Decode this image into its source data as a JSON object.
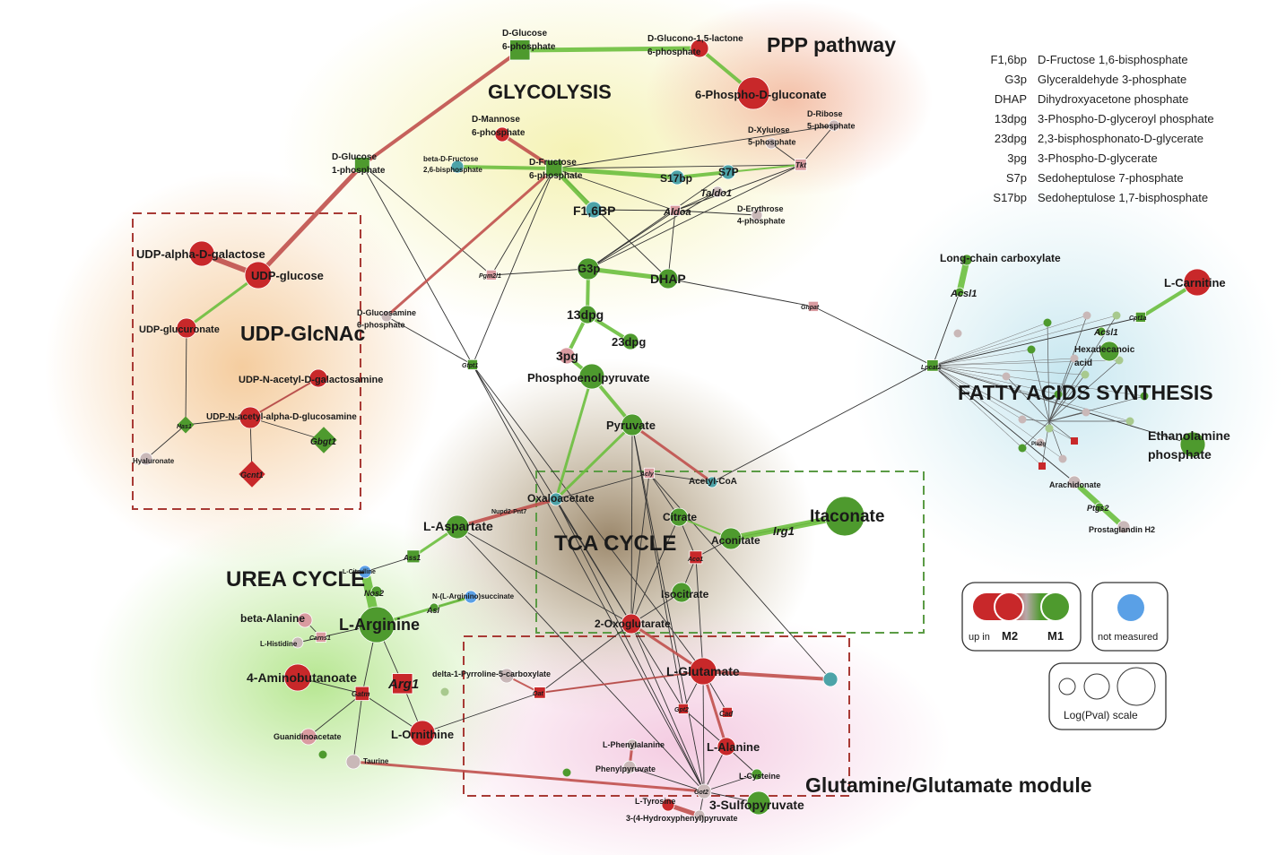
{
  "titles": {
    "ppp": "PPP pathway",
    "glycolysis": "GLYCOLYSIS",
    "udp": "UDP-GlcNAc",
    "fatty": "FATTY ACIDS SYNTHESIS",
    "tca": "TCA CYCLE",
    "urea": "UREA CYCLE",
    "glut": "Glutamine/Glutamate module"
  },
  "abbreviations": [
    {
      "abbr": "F1,6bp",
      "name": "D-Fructose 1,6-bisphosphate"
    },
    {
      "abbr": "G3p",
      "name": "Glyceraldehyde 3-phosphate"
    },
    {
      "abbr": "DHAP",
      "name": "Dihydroxyacetone phosphate"
    },
    {
      "abbr": "13dpg",
      "name": "3-Phospho-D-glyceroyl phosphate"
    },
    {
      "abbr": "23dpg",
      "name": "2,3-bisphosphonato-D-glycerate"
    },
    {
      "abbr": "3pg",
      "name": "3-Phospho-D-glycerate"
    },
    {
      "abbr": "S7p",
      "name": "Sedoheptulose 7-phosphate"
    },
    {
      "abbr": "S17bp",
      "name": "Sedoheptulose 1,7-bisphosphate"
    }
  ],
  "legend": {
    "up_in": "up in",
    "m2": "M2",
    "m1": "M1",
    "not_measured": "not measured",
    "scale": "Log(Pval) scale"
  },
  "colors": {
    "m2": "#c8282a",
    "m1": "#4e9a2e",
    "not_measured": "#5aa0e6",
    "grey": "#c9b8b8",
    "pink": "#d99ba0",
    "teal": "#4da3a8",
    "edge_green": "#6cbf3e",
    "edge_red": "#c0504d"
  },
  "nodes": [
    {
      "id": "dglc6p",
      "label": "D-Glucose\n6-phosphate",
      "color": "m1",
      "shape": "square",
      "size": 16
    },
    {
      "id": "glucono",
      "label": "D-Glucono-1,5-lactone\n6-phosphate",
      "color": "m2",
      "shape": "circle",
      "size": 10
    },
    {
      "id": "phosphogluc",
      "label": "6-Phospho-D-gluconate",
      "color": "m2",
      "shape": "circle",
      "size": 18
    },
    {
      "id": "dglc1p",
      "label": "D-Glucose\n1-phosphate",
      "color": "m1",
      "shape": "square",
      "size": 12
    },
    {
      "id": "dman6p",
      "label": "D-Mannose\n6-phosphate",
      "color": "m2",
      "shape": "circle",
      "size": 8
    },
    {
      "id": "betafru",
      "label": "beta-D-Fructose\n2,6-bisphosphate",
      "color": "teal",
      "shape": "circle",
      "size": 7
    },
    {
      "id": "dfru6p",
      "label": "D-Fructose\n6-phosphate",
      "color": "m1",
      "shape": "square",
      "size": 13
    },
    {
      "id": "dxyl",
      "label": "D-Xylulose\n5-phosphate",
      "color": "grey",
      "shape": "circle",
      "size": 6
    },
    {
      "id": "drib",
      "label": "D-Ribose\n5-phosphate",
      "color": "grey",
      "shape": "circle",
      "size": 6
    },
    {
      "id": "tkt",
      "label": "Tkt",
      "color": "pink",
      "shape": "square",
      "size": 9
    },
    {
      "id": "s17bp",
      "label": "S17bp",
      "color": "teal",
      "shape": "circle",
      "size": 8
    },
    {
      "id": "s7p",
      "label": "S7P",
      "color": "teal",
      "shape": "circle",
      "size": 8
    },
    {
      "id": "taldo",
      "label": "Taldo1",
      "color": "grey",
      "shape": "circle",
      "size": 6
    },
    {
      "id": "f16bp",
      "label": "F1,6BP",
      "color": "teal",
      "shape": "circle",
      "size": 9
    },
    {
      "id": "aldoa",
      "label": "Aldoa",
      "color": "pink",
      "shape": "square",
      "size": 8
    },
    {
      "id": "derythrose",
      "label": "D-Erythrose\n4-phosphate",
      "color": "grey",
      "shape": "circle",
      "size": 6
    },
    {
      "id": "g3p",
      "label": "G3p",
      "color": "m1",
      "shape": "circle",
      "size": 12
    },
    {
      "id": "dhap",
      "label": "DHAP",
      "color": "m1",
      "shape": "circle",
      "size": 11
    },
    {
      "id": "pgm2l1",
      "label": "Pgm2l1",
      "color": "pink",
      "shape": "square",
      "size": 8
    },
    {
      "id": "d13dpg",
      "label": "13dpg",
      "color": "m1",
      "shape": "circle",
      "size": 10
    },
    {
      "id": "d23dpg",
      "label": "23dpg",
      "color": "m1",
      "shape": "circle",
      "size": 9
    },
    {
      "id": "pg3",
      "label": "3pg",
      "color": "pink",
      "shape": "circle",
      "size": 9
    },
    {
      "id": "pep",
      "label": "Phosphoenolpyruvate",
      "color": "m1",
      "shape": "circle",
      "size": 14
    },
    {
      "id": "pyruvate",
      "label": "Pyruvate",
      "color": "m1",
      "shape": "circle",
      "size": 12
    },
    {
      "id": "gnpat",
      "label": "Gnpat",
      "color": "pink",
      "shape": "square",
      "size": 8
    },
    {
      "id": "glucosamine",
      "label": "D-Glucosamine\n6-phosphate",
      "color": "grey",
      "shape": "circle",
      "size": 6
    },
    {
      "id": "gfpt1",
      "label": "Gfpt1",
      "color": "m1",
      "shape": "square",
      "size": 8
    },
    {
      "id": "udpgal",
      "label": "UDP-alpha-D-galactose",
      "color": "m2",
      "shape": "circle",
      "size": 14
    },
    {
      "id": "udpglc",
      "label": "UDP-glucose",
      "color": "m2",
      "shape": "circle",
      "size": 15
    },
    {
      "id": "udpglcu",
      "label": "UDP-glucuronate",
      "color": "m2",
      "shape": "circle",
      "size": 11
    },
    {
      "id": "udpgalnac",
      "label": "UDP-N-acetyl-D-galactosamine",
      "color": "m2",
      "shape": "circle",
      "size": 10
    },
    {
      "id": "udpglcnac",
      "label": "UDP-N-acetyl-alpha-D-glucosamine",
      "color": "m2",
      "shape": "circle",
      "size": 12
    },
    {
      "id": "has1",
      "label": "Has1",
      "color": "m1",
      "shape": "diamond",
      "size": 9
    },
    {
      "id": "hyal",
      "label": "Hyaluronate",
      "color": "grey",
      "shape": "circle",
      "size": 7
    },
    {
      "id": "gcnt1",
      "label": "Gcnt1",
      "color": "m2",
      "shape": "diamond",
      "size": 14
    },
    {
      "id": "gbgt1",
      "label": "Gbgt1",
      "color": "m1",
      "shape": "diamond",
      "size": 14
    },
    {
      "id": "acly",
      "label": "Acly",
      "color": "pink",
      "shape": "square",
      "size": 8
    },
    {
      "id": "acetylcoa",
      "label": "Acetyl-CoA",
      "color": "teal",
      "shape": "circle",
      "size": 6
    },
    {
      "id": "oaa",
      "label": "Oxaloacetate",
      "color": "teal",
      "shape": "circle",
      "size": 7
    },
    {
      "id": "citrate",
      "label": "Citrate",
      "color": "m1",
      "shape": "circle",
      "size": 10
    },
    {
      "id": "aconitate",
      "label": "Aconitate",
      "color": "m1",
      "shape": "circle",
      "size": 12
    },
    {
      "id": "itaconate",
      "label": "Itaconate",
      "color": "m1",
      "shape": "circle",
      "size": 22
    },
    {
      "id": "aco1",
      "label": "Aco1",
      "color": "m2",
      "shape": "square",
      "size": 10
    },
    {
      "id": "isocitrate",
      "label": "Isocitrate",
      "color": "m1",
      "shape": "circle",
      "size": 11
    },
    {
      "id": "oxoglu",
      "label": "2-Oxoglutarate",
      "color": "m2",
      "shape": "circle",
      "size": 11
    },
    {
      "id": "laspartate",
      "label": "L-Aspartate",
      "color": "m1",
      "shape": "circle",
      "size": 13
    },
    {
      "id": "ass1",
      "label": "Ass1",
      "color": "m1",
      "shape": "square",
      "size": 10
    },
    {
      "id": "lcitrul",
      "label": "L-Citrulline",
      "color": "not_measured",
      "shape": "circle",
      "size": 7
    },
    {
      "id": "nos2",
      "label": "Nos2",
      "color": "m1",
      "shape": "circle",
      "size": 6
    },
    {
      "id": "arginosucc",
      "label": "N-(L-Arginino)succinate",
      "color": "not_measured",
      "shape": "circle",
      "size": 7
    },
    {
      "id": "asl",
      "label": "Asl",
      "color": "m1",
      "shape": "circle",
      "size": 5
    },
    {
      "id": "larg",
      "label": "L-Arginine",
      "color": "m1",
      "shape": "circle",
      "size": 20
    },
    {
      "id": "betaala",
      "label": "beta-Alanine",
      "color": "pink",
      "shape": "circle",
      "size": 8
    },
    {
      "id": "lhist",
      "label": "L-Histidine",
      "color": "grey",
      "shape": "circle",
      "size": 6
    },
    {
      "id": "carns1",
      "label": "Carns1",
      "color": "pink",
      "shape": "square",
      "size": 8
    },
    {
      "id": "aminobut",
      "label": "4-Aminobutanoate",
      "color": "m2",
      "shape": "circle",
      "size": 15
    },
    {
      "id": "gatm",
      "label": "Gatm",
      "color": "m2",
      "shape": "square",
      "size": 11
    },
    {
      "id": "arg1",
      "label": "Arg1",
      "color": "m2",
      "shape": "square",
      "size": 16
    },
    {
      "id": "lornithine",
      "label": "L-Ornithine",
      "color": "m2",
      "shape": "circle",
      "size": 14
    },
    {
      "id": "guanid",
      "label": "Guanidinoacetate",
      "color": "pink",
      "shape": "circle",
      "size": 9
    },
    {
      "id": "taurine",
      "label": "Taurine",
      "color": "grey",
      "shape": "circle",
      "size": 8
    },
    {
      "id": "p5c",
      "label": "delta-1-Pyrroline-5-carboxylate",
      "color": "grey",
      "shape": "circle",
      "size": 8
    },
    {
      "id": "oat",
      "label": "Oat",
      "color": "m2",
      "shape": "square",
      "size": 9
    },
    {
      "id": "lglu",
      "label": "L-Glutamate",
      "color": "m2",
      "shape": "circle",
      "size": 15
    },
    {
      "id": "gpt2",
      "label": "Gpt2",
      "color": "m2",
      "shape": "square",
      "size": 8
    },
    {
      "id": "cad",
      "label": "Cad",
      "color": "m2",
      "shape": "square",
      "size": 8
    },
    {
      "id": "lala",
      "label": "L-Alanine",
      "color": "m2",
      "shape": "circle",
      "size": 10
    },
    {
      "id": "lphe",
      "label": "L-Phenylalanine",
      "color": "grey",
      "shape": "circle",
      "size": 6
    },
    {
      "id": "phepyr",
      "label": "Phenylpyruvate",
      "color": "grey",
      "shape": "circle",
      "size": 7
    },
    {
      "id": "lcys",
      "label": "L-Cysteine",
      "color": "m1",
      "shape": "circle",
      "size": 6
    },
    {
      "id": "got2",
      "label": "Got2",
      "color": "grey",
      "shape": "circle",
      "size": 8
    },
    {
      "id": "sulfopyr",
      "label": "3-Sulfopyruvate",
      "color": "m1",
      "shape": "circle",
      "size": 13
    },
    {
      "id": "ltyr",
      "label": "L-Tyrosine",
      "color": "m2",
      "shape": "circle",
      "size": 7
    },
    {
      "id": "hydroxyphenyl",
      "label": "3-(4-Hydroxyphenyl)pyruvate",
      "color": "grey",
      "shape": "circle",
      "size": 6
    },
    {
      "id": "longchain",
      "label": "Long-chain carboxylate",
      "color": "m1",
      "shape": "circle",
      "size": 6
    },
    {
      "id": "acsl1a",
      "label": "Acsl1",
      "color": "m1",
      "shape": "circle",
      "size": 5
    },
    {
      "id": "lcarn",
      "label": "L-Carnitine",
      "color": "m2",
      "shape": "circle",
      "size": 15
    },
    {
      "id": "cpt1a",
      "label": "Cpt1a",
      "color": "m1",
      "shape": "square",
      "size": 8
    },
    {
      "id": "acsl1b",
      "label": "Acsl1",
      "color": "m1",
      "shape": "circle",
      "size": 5
    },
    {
      "id": "hexa",
      "label": "Hexadecanoic\nacid",
      "color": "m1",
      "shape": "circle",
      "size": 11
    },
    {
      "id": "lpcat2",
      "label": "Lpcat2",
      "color": "m1",
      "shape": "square",
      "size": 9
    },
    {
      "id": "ethanol",
      "label": "Ethanolamine\nphosphate",
      "color": "m1",
      "shape": "circle",
      "size": 14
    },
    {
      "id": "arach",
      "label": "Arachidonate",
      "color": "grey",
      "shape": "circle",
      "size": 7
    },
    {
      "id": "ptgs2",
      "label": "Ptgs2",
      "color": "m1",
      "shape": "circle",
      "size": 5
    },
    {
      "id": "prosta",
      "label": "Prostaglandin H2",
      "color": "grey",
      "shape": "circle",
      "size": 7
    },
    {
      "id": "pla2",
      "label": "Pla2g",
      "color": "grey",
      "shape": "circle",
      "size": 5
    },
    {
      "id": "mystery",
      "label": "",
      "color": "teal",
      "shape": "circle",
      "size": 8
    }
  ]
}
